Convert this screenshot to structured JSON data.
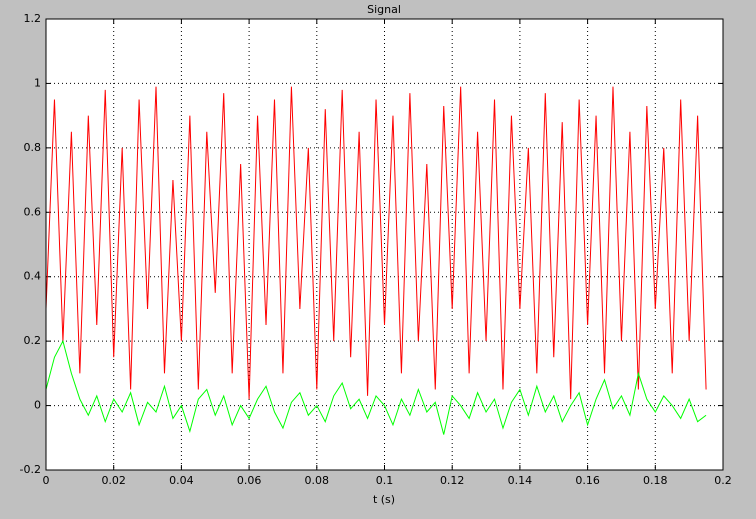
{
  "chart_data": {
    "type": "line",
    "title": "Signal",
    "xlabel": "t (s)",
    "x": [
      0,
      0.0025,
      0.005,
      0.0075,
      0.01,
      0.0125,
      0.015,
      0.0175,
      0.02,
      0.0225,
      0.025,
      0.0275,
      0.03,
      0.0325,
      0.035,
      0.0375,
      0.04,
      0.0425,
      0.045,
      0.0475,
      0.05,
      0.0525,
      0.055,
      0.0575,
      0.06,
      0.0625,
      0.065,
      0.0675,
      0.07,
      0.0725,
      0.075,
      0.0775,
      0.08,
      0.0825,
      0.085,
      0.0875,
      0.09,
      0.0925,
      0.095,
      0.0975,
      0.1,
      0.1025,
      0.105,
      0.1075,
      0.11,
      0.1125,
      0.115,
      0.1175,
      0.12,
      0.1225,
      0.125,
      0.1275,
      0.13,
      0.1325,
      0.135,
      0.1375,
      0.14,
      0.1425,
      0.145,
      0.1475,
      0.15,
      0.1525,
      0.155,
      0.1575,
      0.16,
      0.1625,
      0.165,
      0.1675,
      0.17,
      0.1725,
      0.175,
      0.1775,
      0.18,
      0.1825,
      0.185,
      0.1875,
      0.19,
      0.1925,
      0.195
    ],
    "series": [
      {
        "color": "#ff0000",
        "values": [
          0.3,
          0.95,
          0.2,
          0.85,
          0.1,
          0.9,
          0.25,
          0.98,
          0.15,
          0.8,
          0.05,
          0.95,
          0.3,
          0.99,
          0.1,
          0.7,
          0.2,
          0.9,
          0.05,
          0.85,
          0.35,
          0.97,
          0.1,
          0.75,
          0.02,
          0.9,
          0.25,
          0.95,
          0.1,
          0.99,
          0.3,
          0.8,
          0.05,
          0.92,
          0.2,
          0.98,
          0.15,
          0.85,
          0.03,
          0.95,
          0.25,
          0.9,
          0.1,
          0.97,
          0.2,
          0.75,
          0.05,
          0.93,
          0.3,
          0.99,
          0.1,
          0.85,
          0.2,
          0.95,
          0.05,
          0.9,
          0.3,
          0.8,
          0.1,
          0.97,
          0.15,
          0.88,
          0.02,
          0.95,
          0.25,
          0.9,
          0.1,
          0.99,
          0.2,
          0.85,
          0.05,
          0.93,
          0.3,
          0.8,
          0.1,
          0.95,
          0.2,
          0.9,
          0.05
        ]
      },
      {
        "color": "#00ff00",
        "values": [
          0.05,
          0.15,
          0.2,
          0.1,
          0.02,
          -0.03,
          0.03,
          -0.05,
          0.02,
          -0.02,
          0.04,
          -0.06,
          0.01,
          -0.02,
          0.06,
          -0.04,
          0.0,
          -0.08,
          0.02,
          0.05,
          -0.03,
          0.03,
          -0.06,
          0.0,
          -0.04,
          0.02,
          0.06,
          -0.02,
          -0.07,
          0.01,
          0.04,
          -0.03,
          0.0,
          -0.05,
          0.03,
          0.07,
          -0.01,
          0.02,
          -0.04,
          0.03,
          0.0,
          -0.06,
          0.02,
          -0.03,
          0.05,
          -0.02,
          0.01,
          -0.09,
          0.03,
          0.0,
          -0.04,
          0.04,
          -0.02,
          0.02,
          -0.07,
          0.01,
          0.05,
          -0.03,
          0.06,
          -0.02,
          0.03,
          -0.05,
          0.0,
          0.04,
          -0.06,
          0.02,
          0.08,
          -0.01,
          0.03,
          -0.03,
          0.1,
          0.02,
          -0.02,
          0.03,
          0.0,
          -0.04,
          0.02,
          -0.05,
          -0.03
        ]
      }
    ],
    "xlim": [
      0,
      0.2
    ],
    "xticks": [
      0,
      0.02,
      0.04,
      0.06,
      0.08,
      0.1,
      0.12,
      0.14,
      0.16,
      0.18,
      0.2
    ],
    "ylim": [
      -0.2,
      1.2
    ],
    "yticks": [
      -0.2,
      0,
      0.2,
      0.4,
      0.6,
      0.8,
      1,
      1.2
    ],
    "grid": true
  }
}
